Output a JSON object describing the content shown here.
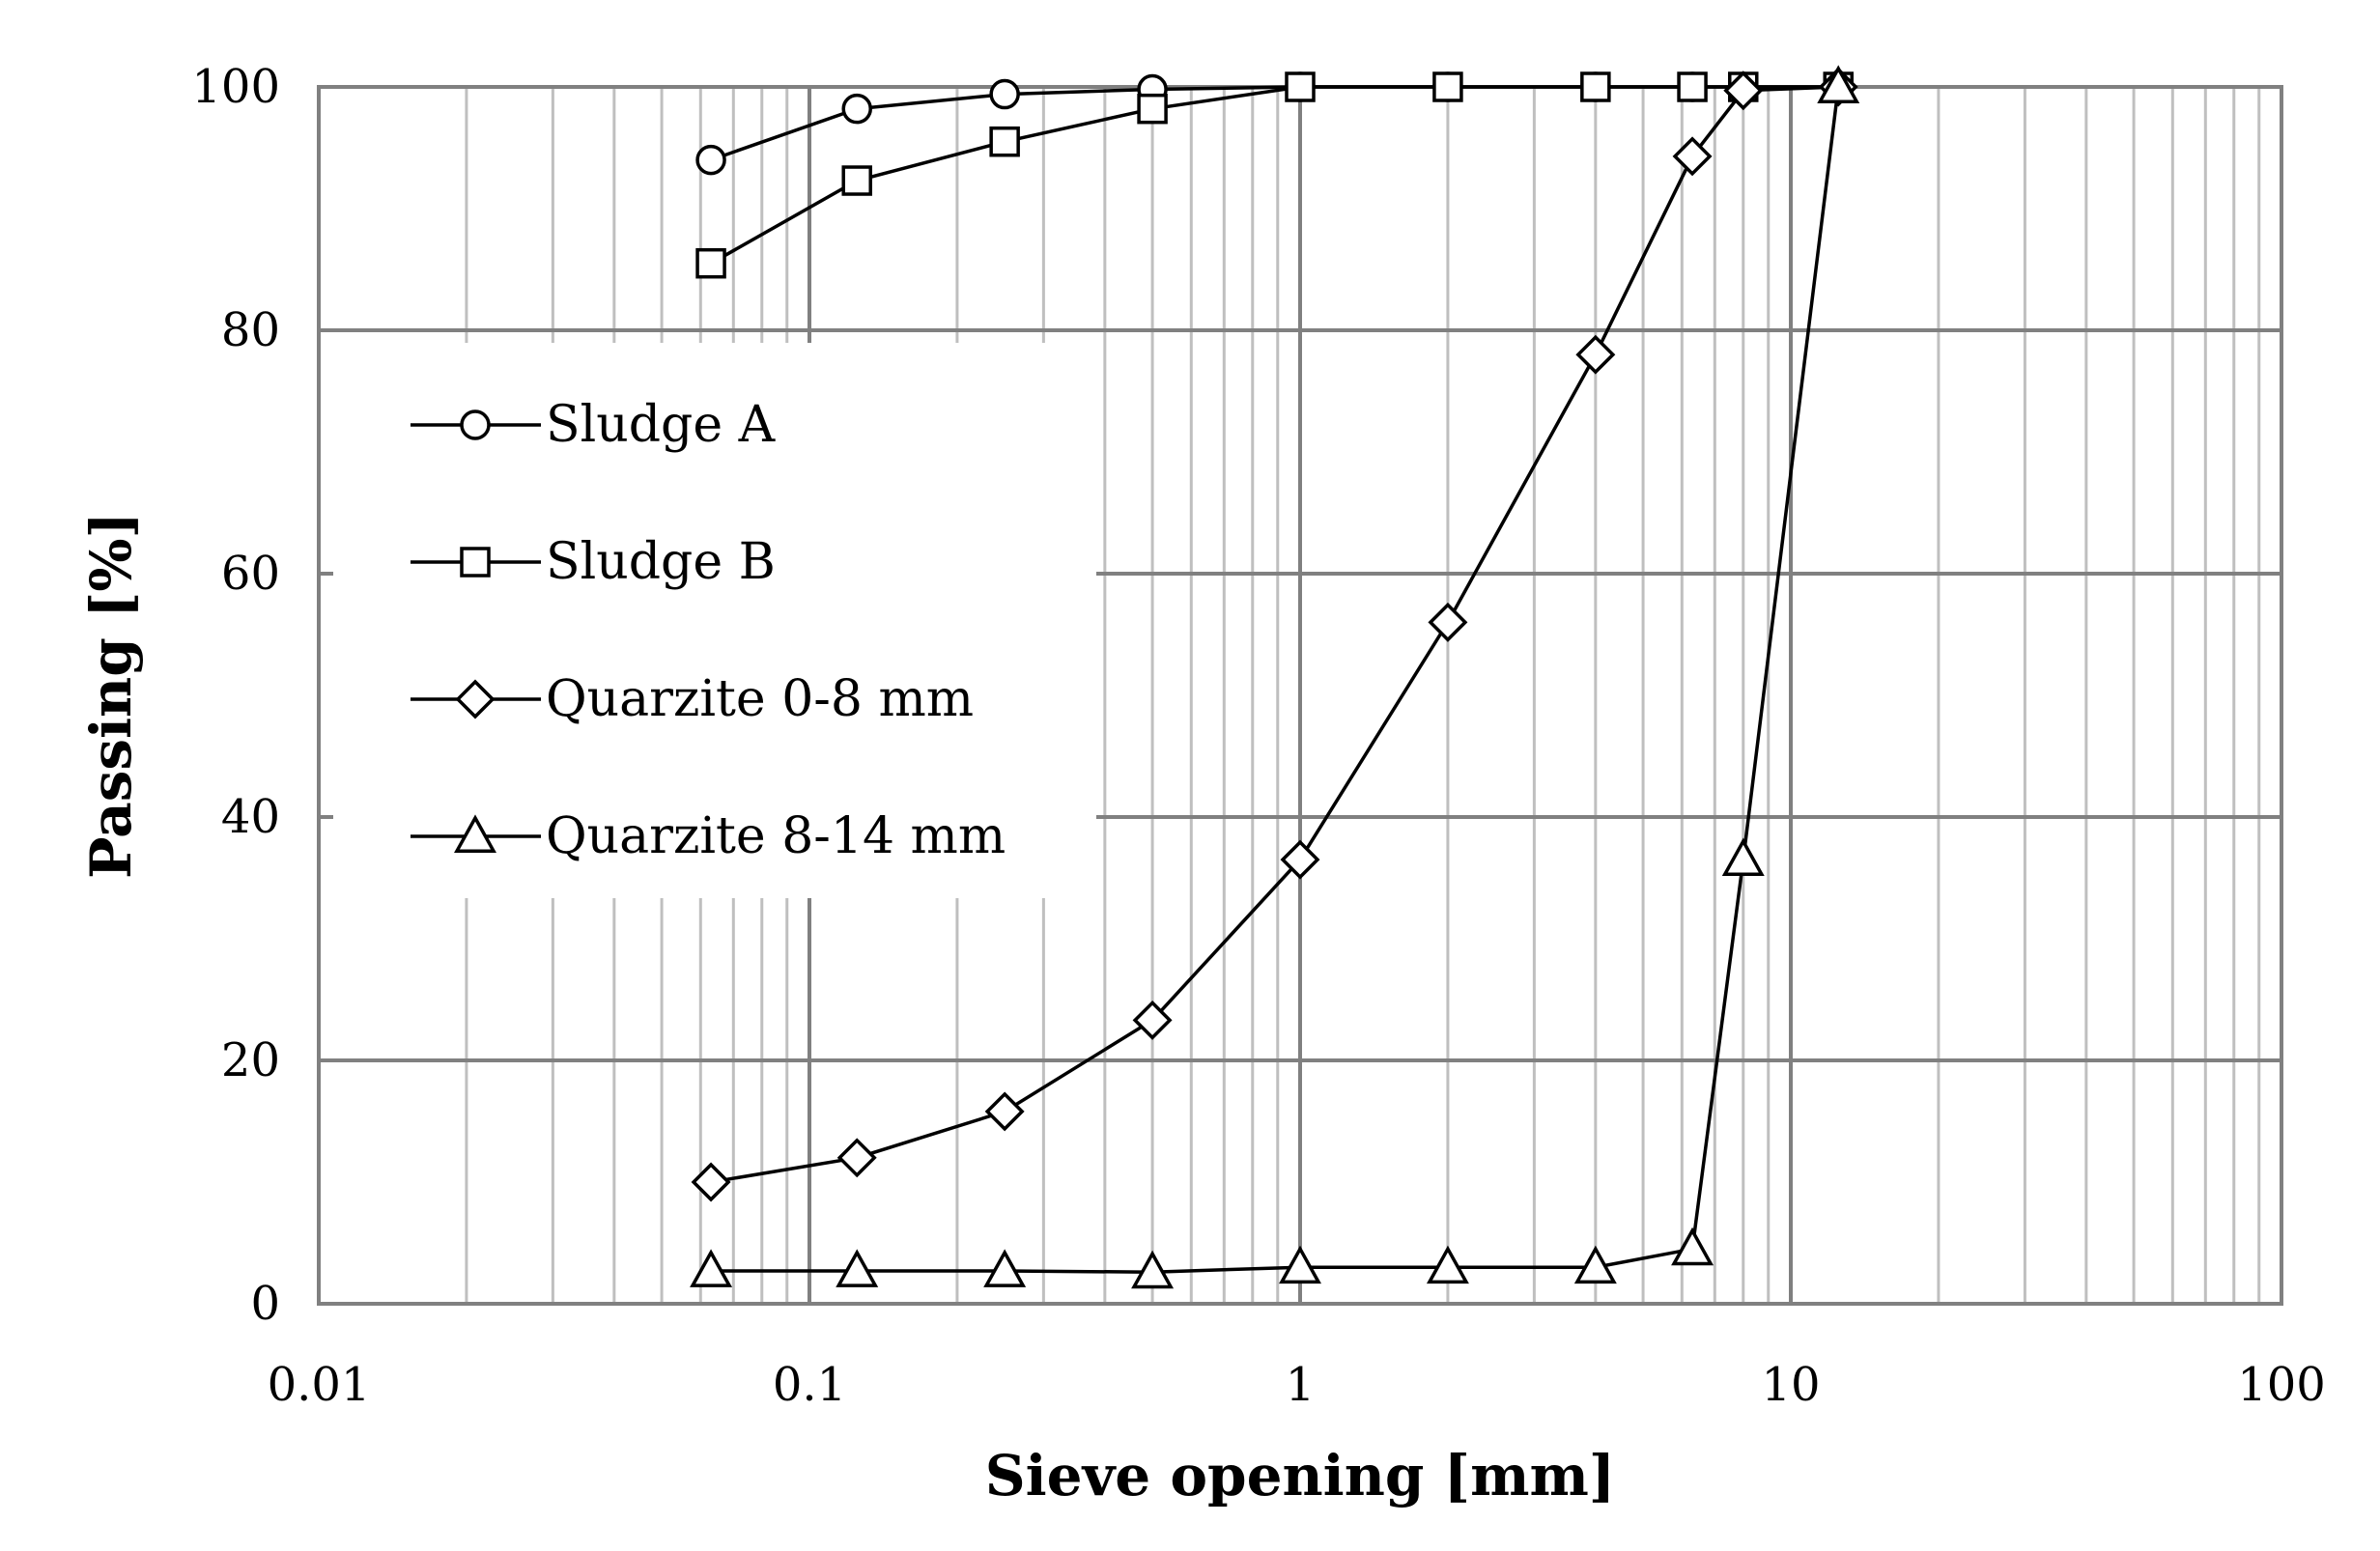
{
  "chart_data": {
    "type": "line",
    "xlabel": "Sieve opening [mm]",
    "ylabel": "Passing [%]",
    "xscale": "log",
    "xlim": [
      0.01,
      100
    ],
    "ylim": [
      0,
      100
    ],
    "x_ticks": [
      "0.01",
      "0.1",
      "1",
      "10",
      "100"
    ],
    "y_ticks": [
      "0",
      "20",
      "40",
      "60",
      "80",
      "100"
    ],
    "grid": true,
    "legend_position": "left",
    "series": [
      {
        "name": "Sludge A",
        "marker": "circle",
        "points": [
          [
            0.063,
            94
          ],
          [
            0.125,
            98.2
          ],
          [
            0.25,
            99.4
          ],
          [
            0.5,
            99.8
          ],
          [
            1,
            100
          ],
          [
            2,
            100
          ],
          [
            4,
            100
          ],
          [
            6.3,
            100
          ],
          [
            8,
            100
          ],
          [
            12.5,
            100
          ]
        ]
      },
      {
        "name": "Sludge B",
        "marker": "square",
        "points": [
          [
            0.063,
            85.5
          ],
          [
            0.125,
            92.3
          ],
          [
            0.25,
            95.5
          ],
          [
            0.5,
            98.2
          ],
          [
            1,
            100
          ],
          [
            2,
            100
          ],
          [
            4,
            100
          ],
          [
            6.3,
            100
          ],
          [
            8,
            100
          ],
          [
            12.5,
            100
          ]
        ]
      },
      {
        "name": "Quarzite 0-8 mm",
        "marker": "diamond",
        "points": [
          [
            0.063,
            10
          ],
          [
            0.125,
            12
          ],
          [
            0.25,
            15.8
          ],
          [
            0.5,
            23.3
          ],
          [
            1,
            36.5
          ],
          [
            2,
            56
          ],
          [
            4,
            78
          ],
          [
            6.3,
            94.3
          ],
          [
            8,
            99.7
          ],
          [
            12.5,
            100
          ]
        ]
      },
      {
        "name": "Quarzite 8-14 mm",
        "marker": "triangle",
        "points": [
          [
            0.063,
            2.7
          ],
          [
            0.125,
            2.7
          ],
          [
            0.25,
            2.7
          ],
          [
            0.5,
            2.6
          ],
          [
            1,
            3
          ],
          [
            2,
            3
          ],
          [
            4,
            3
          ],
          [
            6.3,
            4.5
          ],
          [
            8,
            36.5
          ],
          [
            12.5,
            100
          ]
        ]
      }
    ]
  }
}
